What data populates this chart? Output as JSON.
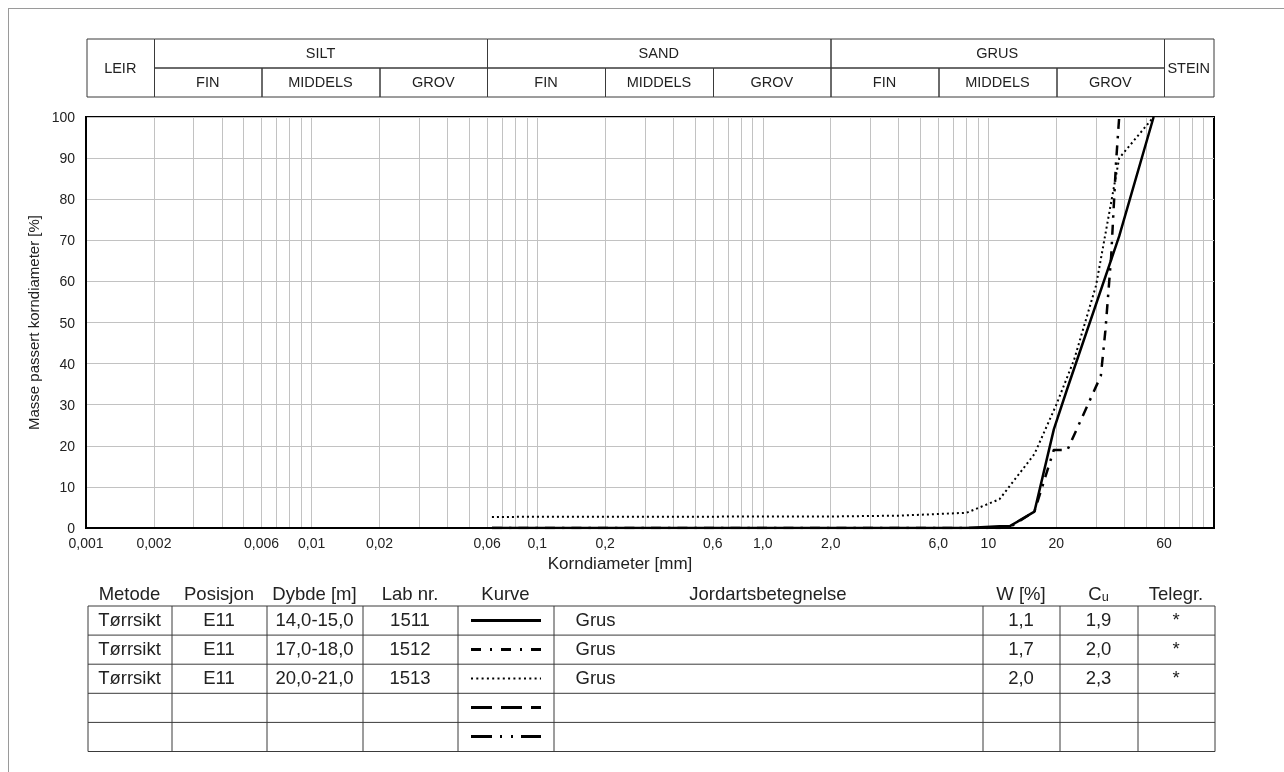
{
  "chart_data": {
    "type": "line",
    "xlabel": "Korndiameter [mm]",
    "ylabel": "Masse passert korndiameter [%]",
    "log": "x",
    "grid": true,
    "marker": "none",
    "xlim": [
      0.001,
      100
    ],
    "xticks": [
      {
        "value": 0.001,
        "label": "0,001"
      },
      {
        "value": 0.002,
        "label": "0,002"
      },
      {
        "value": 0.003,
        "label": null
      },
      {
        "value": 0.004,
        "label": null
      },
      {
        "value": 0.005,
        "label": null
      },
      {
        "value": 0.006,
        "label": "0,006"
      },
      {
        "value": 0.007,
        "label": null
      },
      {
        "value": 0.008,
        "label": null
      },
      {
        "value": 0.009,
        "label": null
      },
      {
        "value": 0.01,
        "label": "0,01"
      },
      {
        "value": 0.02,
        "label": "0,02"
      },
      {
        "value": 0.03,
        "label": null
      },
      {
        "value": 0.04,
        "label": null
      },
      {
        "value": 0.05,
        "label": null
      },
      {
        "value": 0.06,
        "label": "0,06"
      },
      {
        "value": 0.07,
        "label": null
      },
      {
        "value": 0.08,
        "label": null
      },
      {
        "value": 0.09,
        "label": null
      },
      {
        "value": 0.1,
        "label": "0,1"
      },
      {
        "value": 0.2,
        "label": "0,2"
      },
      {
        "value": 0.3,
        "label": null
      },
      {
        "value": 0.4,
        "label": null
      },
      {
        "value": 0.5,
        "label": null
      },
      {
        "value": 0.6,
        "label": "0,6"
      },
      {
        "value": 0.7,
        "label": null
      },
      {
        "value": 0.8,
        "label": null
      },
      {
        "value": 0.9,
        "label": null
      },
      {
        "value": 1,
        "label": "1,0"
      },
      {
        "value": 2,
        "label": "2,0"
      },
      {
        "value": 3,
        "label": null
      },
      {
        "value": 4,
        "label": null
      },
      {
        "value": 5,
        "label": null
      },
      {
        "value": 6,
        "label": "6,0"
      },
      {
        "value": 7,
        "label": null
      },
      {
        "value": 8,
        "label": null
      },
      {
        "value": 9,
        "label": null
      },
      10,
      20,
      {
        "value": 30,
        "label": null
      },
      {
        "value": 40,
        "label": null
      },
      {
        "value": 50,
        "label": null
      },
      60,
      {
        "value": 70,
        "label": null
      },
      {
        "value": 80,
        "label": null
      },
      {
        "value": 90,
        "label": null
      }
    ],
    "ylim": [
      0,
      100
    ],
    "yticks": [
      0,
      10,
      20,
      30,
      40,
      50,
      60,
      70,
      80,
      90,
      100
    ],
    "series": [
      {
        "color": "#000000",
        "line_style": "solid",
        "x": [
          0.063,
          8,
          11.2,
          12.5,
          16,
          19.5,
          22.4,
          38,
          54
        ],
        "values": [
          0,
          0,
          0.4,
          0.5,
          4,
          24,
          34,
          71,
          100
        ]
      },
      {
        "color": "#000000",
        "line_style": "dashdot",
        "x": [
          0.063,
          11.2,
          12.5,
          16,
          19.5,
          22.4,
          31.5,
          33,
          35,
          36.8,
          38
        ],
        "values": [
          0,
          0,
          0.3,
          4,
          19,
          19,
          37,
          48,
          66,
          89,
          100
        ]
      },
      {
        "color": "#000000",
        "line_style": "dotted",
        "x": [
          0.063,
          2,
          4,
          8,
          11.2,
          16,
          20,
          24,
          30,
          38,
          54
        ],
        "values": [
          2.7,
          2.8,
          3,
          3.7,
          7,
          18,
          30,
          41,
          59,
          90,
          100
        ]
      }
    ],
    "annotations": [
      "LEIR",
      "SILT",
      "SAND",
      "GRUS",
      "STEIN",
      "FIN",
      "MIDDELS",
      "GROV",
      "FIN",
      "MIDDELS",
      "GROV",
      "FIN",
      "MIDDELS",
      "GROV",
      "Metode",
      "Posisjon",
      "Dybde [m]",
      "Lab nr.",
      "Kurve",
      "Jordartsbetegnelse",
      "W [%]",
      "Cᵤ",
      "Telegr.",
      "Tørrsikt",
      "E11",
      "14,0-15,0",
      "1511",
      "Grus",
      "1,1",
      "1,9",
      "*",
      "Tørrsikt",
      "E11",
      "17,0-18,0",
      "1512",
      "Grus",
      "1,7",
      "2,0",
      "*",
      "Tørrsikt",
      "E11",
      "20,0-21,0",
      "1513",
      "Grus",
      "2,0",
      "2,3",
      "*"
    ]
  }
}
